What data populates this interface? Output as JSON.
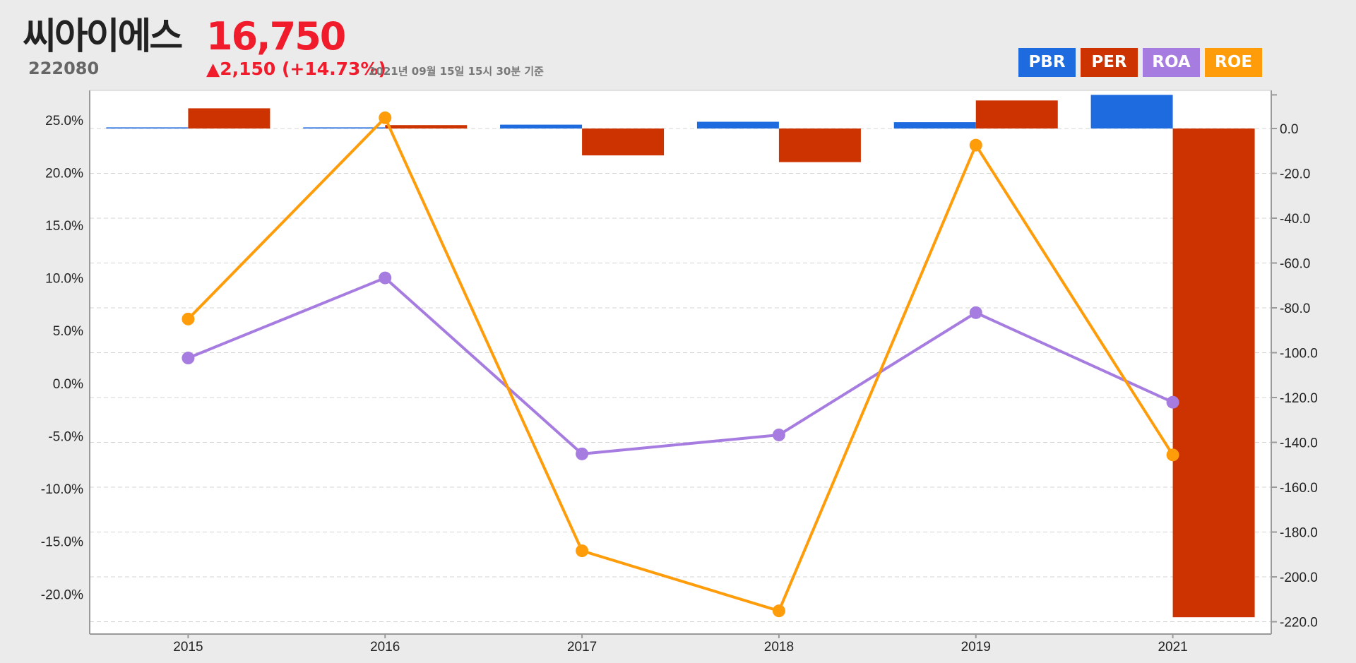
{
  "header": {
    "name": "씨아이에스",
    "code": "222080",
    "price": "16,750",
    "change": "▲2,150 (+14.73%)",
    "date": "2021년 09월 15일 15시 30분 기준"
  },
  "colors": {
    "PBR": "#1e6be0",
    "PER": "#cc3300",
    "ROA": "#a67ce0",
    "ROE": "#ff9c0a",
    "text_up": "#f01c2c"
  },
  "legend": [
    {
      "label": "PBR",
      "color": "#1e6be0"
    },
    {
      "label": "PER",
      "color": "#cc3300"
    },
    {
      "label": "ROA",
      "color": "#a67ce0"
    },
    {
      "label": "ROE",
      "color": "#ff9c0a"
    }
  ],
  "chart_data": {
    "type": "bar",
    "categories": [
      "2015",
      "2016",
      "2017",
      "2018",
      "2019",
      "2021"
    ],
    "bar_series": [
      {
        "name": "PBR",
        "axis": "right",
        "values": [
          0.5,
          0.5,
          1.7,
          3.0,
          2.8,
          15.0
        ]
      },
      {
        "name": "PER",
        "axis": "right",
        "values": [
          9.0,
          1.5,
          -12.0,
          -15.0,
          12.5,
          -218.0
        ]
      }
    ],
    "line_series": [
      {
        "name": "ROA",
        "axis": "left",
        "values": [
          2.4,
          10.0,
          -6.7,
          -4.9,
          6.7,
          -1.8
        ]
      },
      {
        "name": "ROE",
        "axis": "left",
        "values": [
          6.1,
          25.2,
          -15.9,
          -21.6,
          22.6,
          -6.8
        ]
      }
    ],
    "left_axis": {
      "ticks": [
        "25.0%",
        "20.0%",
        "15.0%",
        "10.0%",
        "5.0%",
        "0.0%",
        "-5.0%",
        "-10.0%",
        "-15.0%",
        "-20.0%"
      ],
      "values": [
        25,
        20,
        15,
        10,
        5,
        0,
        -5,
        -10,
        -15,
        -20
      ],
      "range": [
        -23.8,
        27.8
      ]
    },
    "right_axis": {
      "ticks": [
        "0.0",
        "-20.0",
        "-40.0",
        "-60.0",
        "-80.0",
        "-100.0",
        "-120.0",
        "-140.0",
        "-160.0",
        "-180.0",
        "-200.0",
        "-220.0"
      ],
      "values": [
        0,
        -20,
        -40,
        -60,
        -80,
        -100,
        -120,
        -140,
        -160,
        -180,
        -200,
        -220
      ],
      "range": [
        -225.5,
        17
      ]
    },
    "grid": true,
    "legend_position": "top-right"
  }
}
